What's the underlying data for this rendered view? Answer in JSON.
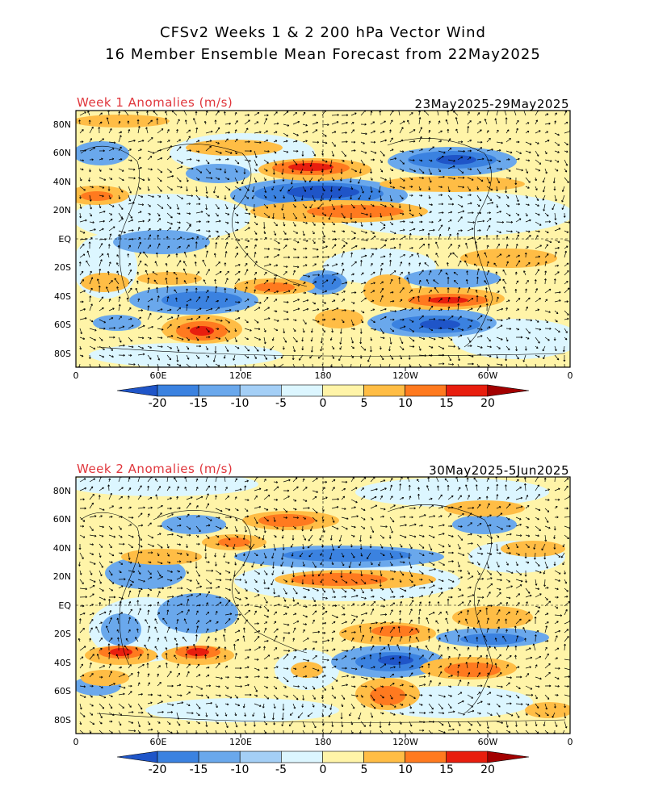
{
  "title_line1": "CFSv2 Weeks 1 & 2 200 hPa Vector Wind",
  "title_line2": "16 Member Ensemble Mean Forecast from 22May2025",
  "panels": [
    {
      "label": "Week 1 Anomalies (m/s)",
      "dates": "23May2025-29May2025"
    },
    {
      "label": "Week 2 Anomalies (m/s)",
      "dates": "30May2025-5Jun2025"
    }
  ],
  "lat_labels": [
    "80N",
    "60N",
    "40N",
    "20N",
    "EQ",
    "20S",
    "40S",
    "60S",
    "80S"
  ],
  "lon_labels": [
    "0",
    "60E",
    "120E",
    "180",
    "120W",
    "60W",
    "0"
  ],
  "colorbar": {
    "labels": [
      "-20",
      "-15",
      "-10",
      "-5",
      "0",
      "5",
      "10",
      "15",
      "20"
    ],
    "colors": [
      "#1f55c8",
      "#3b82e0",
      "#6aa8ec",
      "#a4cff6",
      "#dcf6ff",
      "#fff4a8",
      "#ffbd45",
      "#ff7a1f",
      "#e81e0e",
      "#a30000"
    ]
  }
}
